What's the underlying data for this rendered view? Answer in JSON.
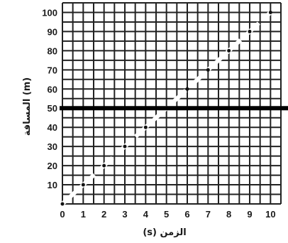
{
  "chart_data": {
    "type": "scatter",
    "title": "",
    "xlabel": "(s) الزمن",
    "ylabel": "المسافة (m)",
    "x_ticks": [
      "0",
      "1",
      "2",
      "3",
      "4",
      "5",
      "6",
      "7",
      "8",
      "9",
      "10"
    ],
    "y_ticks": [
      "10",
      "20",
      "30",
      "40",
      "50",
      "60",
      "70",
      "80",
      "90",
      "100"
    ],
    "xlim": [
      0,
      10.5
    ],
    "ylim": [
      0,
      105
    ],
    "grid": true,
    "series": [
      {
        "x": [
          0,
          1,
          2,
          3,
          4,
          5,
          6,
          7,
          8,
          9,
          10
        ],
        "y": [
          0,
          10,
          20,
          30,
          40,
          50,
          60,
          70,
          80,
          90,
          100
        ]
      }
    ],
    "highlight_line_y": 50
  },
  "colors": {
    "grid": "#222222",
    "highlight": "#000000",
    "line": "#ffffff",
    "marker": "#111111"
  }
}
